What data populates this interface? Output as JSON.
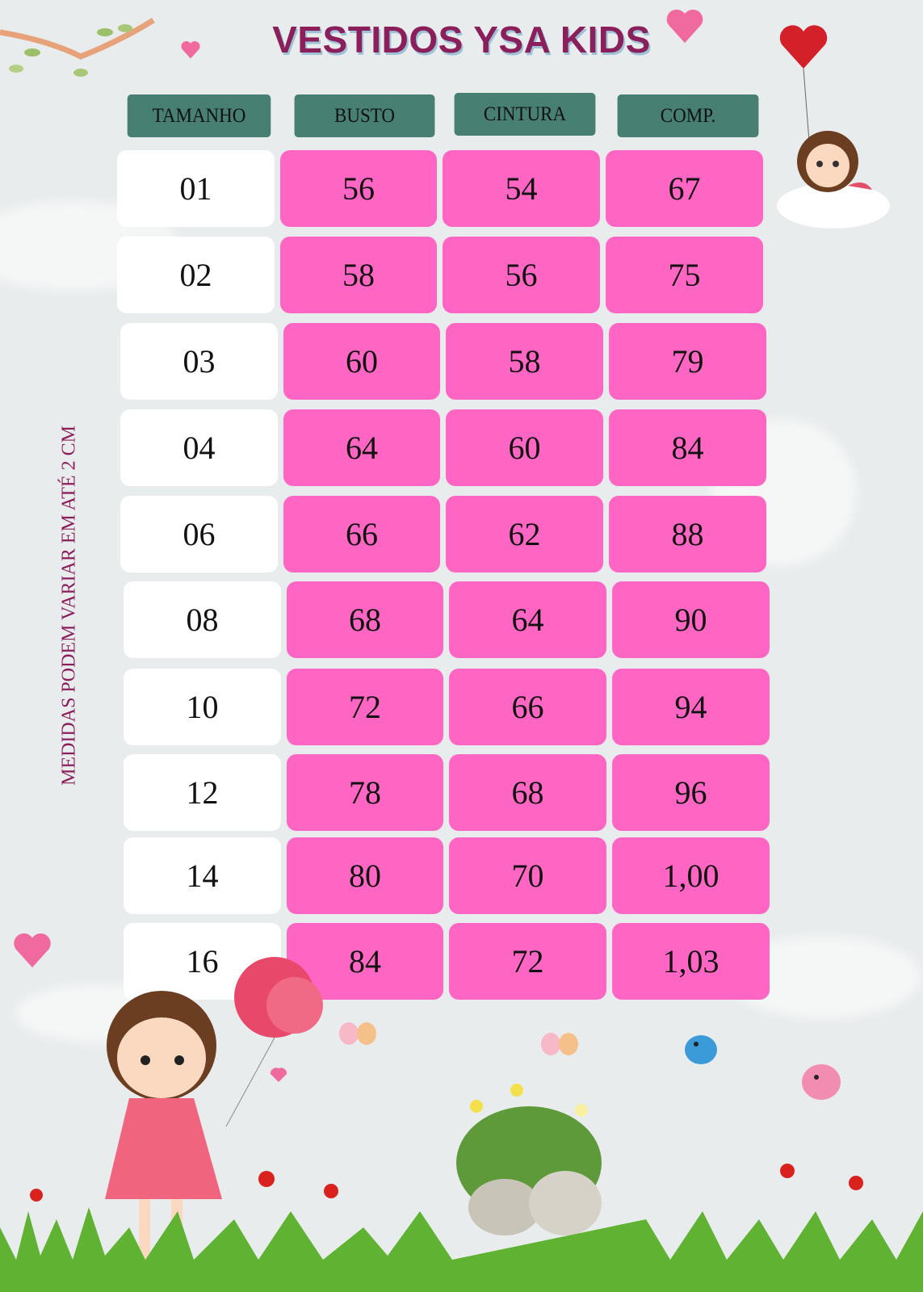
{
  "title": "VESTIDOS YSA KIDS",
  "side_note": "MEDIDAS PODEM VARIAR EM ATÉ 2 CM",
  "columns": [
    "TAMANHO",
    "BUSTO",
    "CINTURA",
    "COMP."
  ],
  "rows": [
    [
      "01",
      "56",
      "54",
      "67"
    ],
    [
      "02",
      "58",
      "56",
      "75"
    ],
    [
      "03",
      "60",
      "58",
      "79"
    ],
    [
      "04",
      "64",
      "60",
      "84"
    ],
    [
      "06",
      "66",
      "62",
      "88"
    ],
    [
      "08",
      "68",
      "64",
      "90"
    ],
    [
      "10",
      "72",
      "66",
      "94"
    ],
    [
      "12",
      "78",
      "68",
      "96"
    ],
    [
      "14",
      "80",
      "70",
      "1,00"
    ],
    [
      "16",
      "84",
      "72",
      "1,03"
    ]
  ],
  "colors": {
    "background": "#e9eced",
    "title": "#8a1f5c",
    "header": "#477f72",
    "value_cell": "#ff66c4",
    "size_cell": "#ffffff"
  },
  "decorations": [
    "branch-icon",
    "heart-icon",
    "balloon-heart-icon",
    "girl-on-cloud-illustration",
    "girl-with-balloons-illustration",
    "butterfly-icon",
    "bird-icon",
    "flower-rock-illustration",
    "grass-illustration"
  ]
}
